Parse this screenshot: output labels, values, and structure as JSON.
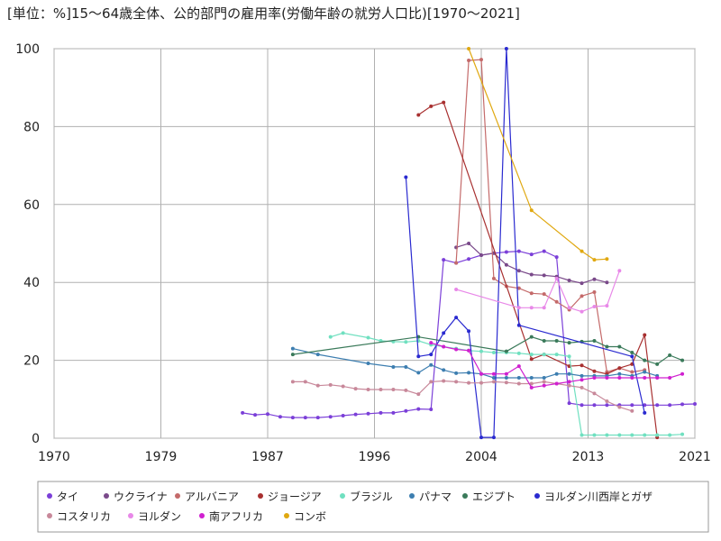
{
  "chart_data": {
    "type": "line",
    "title": "[単位：%]15～64歳全体、公的部門の雇用率(労働年齢の就労人口比)[1970～2021]",
    "xlabel": "",
    "ylabel": "",
    "xlim": [
      1970,
      2021
    ],
    "ylim": [
      0,
      100
    ],
    "x_ticks": [
      "1970",
      "1979",
      "1987",
      "1996",
      "2004",
      "2013",
      "2021"
    ],
    "x_tick_values": [
      1970,
      1978.5,
      1987,
      1995.5,
      2004,
      2012.5,
      2021
    ],
    "y_ticks": [
      "0",
      "20",
      "40",
      "60",
      "80",
      "100"
    ],
    "grid": true,
    "legend_position": "bottom",
    "series": [
      {
        "name": "タイ",
        "color": "#7b3fd8",
        "x": [
          1985,
          1986,
          1987,
          1988,
          1989,
          1990,
          1991,
          1992,
          1993,
          1994,
          1995,
          1996,
          1997,
          1998,
          1999,
          2000,
          2001,
          2002,
          2003,
          2004,
          2005,
          2006,
          2007,
          2008,
          2009,
          2010,
          2011,
          2012,
          2013,
          2014,
          2015,
          2016,
          2017,
          2018,
          2019,
          2020,
          2021
        ],
        "y": [
          6.5,
          6.0,
          6.2,
          5.5,
          5.3,
          5.3,
          5.3,
          5.5,
          5.8,
          6.1,
          6.3,
          6.5,
          6.5,
          7.0,
          7.5,
          7.4,
          45.8,
          45.0,
          46.0,
          47.0,
          47.5,
          47.8,
          48.0,
          47.2,
          48.0,
          46.5,
          9.0,
          8.5,
          8.5,
          8.5,
          8.5,
          8.5,
          8.5,
          8.5,
          8.5,
          8.7,
          8.8
        ]
      },
      {
        "name": "ウクライナ",
        "color": "#7a4a8a",
        "x": [
          2002,
          2003,
          2004,
          2005,
          2006,
          2007,
          2008,
          2009,
          2010,
          2011,
          2012,
          2013,
          2014
        ],
        "y": [
          49.0,
          50.0,
          47.0,
          47.5,
          44.5,
          43.0,
          42.0,
          41.8,
          41.5,
          40.5,
          39.8,
          40.8,
          40.0
        ]
      },
      {
        "name": "アルバニア",
        "color": "#c46a6a",
        "x": [
          2002,
          2003,
          2004,
          2005,
          2006,
          2007,
          2008,
          2009,
          2010,
          2011,
          2012,
          2013,
          2014,
          2015,
          2016,
          2017
        ],
        "y": [
          45.0,
          97.0,
          97.2,
          41.0,
          39.0,
          38.5,
          37.2,
          37.0,
          35.0,
          33.0,
          36.5,
          37.5,
          17.0,
          18.0,
          17.0,
          17.5
        ]
      },
      {
        "name": "ジョージア",
        "color": "#a83030",
        "x": [
          1999,
          2000,
          2001,
          2008,
          2009,
          2011,
          2012,
          2013,
          2014,
          2015,
          2016,
          2017,
          2018
        ],
        "y": [
          83.0,
          85.2,
          86.2,
          20.3,
          21.5,
          18.5,
          18.7,
          17.2,
          16.5,
          18.0,
          19.0,
          26.5,
          0.2
        ]
      },
      {
        "name": "ブラジル",
        "color": "#70e0c0",
        "x": [
          1992,
          1993,
          1995,
          1996,
          1997,
          1998,
          1999,
          2000,
          2001,
          2002,
          2003,
          2004,
          2005,
          2006,
          2007,
          2008,
          2009,
          2010,
          2011,
          2012,
          2013,
          2014,
          2015,
          2016,
          2017,
          2018,
          2019,
          2020
        ],
        "y": [
          26.0,
          27.0,
          25.8,
          25.0,
          24.8,
          24.7,
          25.0,
          24.0,
          23.5,
          23.0,
          22.5,
          22.3,
          22.0,
          22.0,
          21.8,
          21.5,
          21.5,
          21.5,
          21.0,
          0.8,
          0.8,
          0.8,
          0.8,
          0.8,
          0.8,
          0.8,
          0.8,
          1.0
        ]
      },
      {
        "name": "パナマ",
        "color": "#3d7eb0",
        "x": [
          1989,
          1991,
          1995,
          1997,
          1998,
          1999,
          2000,
          2001,
          2002,
          2003,
          2004,
          2005,
          2006,
          2007,
          2008,
          2009,
          2010,
          2011,
          2012,
          2013,
          2014,
          2015,
          2016,
          2017,
          2018
        ],
        "y": [
          23.0,
          21.5,
          19.2,
          18.3,
          18.3,
          16.8,
          18.8,
          17.5,
          16.7,
          16.8,
          16.5,
          15.5,
          15.5,
          15.5,
          15.5,
          15.5,
          16.5,
          16.5,
          16.0,
          16.0,
          16.0,
          16.5,
          16.0,
          17.0,
          16.0
        ]
      },
      {
        "name": "エジプト",
        "color": "#3a7a5a",
        "x": [
          1989,
          1999,
          2006,
          2008,
          2009,
          2010,
          2011,
          2012,
          2013,
          2014,
          2015,
          2016,
          2017,
          2018,
          2019,
          2020
        ],
        "y": [
          21.5,
          26.0,
          22.3,
          26.0,
          25.0,
          25.0,
          24.5,
          24.8,
          25.0,
          23.5,
          23.5,
          22.0,
          20.0,
          19.0,
          21.3,
          20.0
        ]
      },
      {
        "name": "ヨルダン川西岸とガザ",
        "color": "#2a2ad0",
        "x": [
          1998,
          1999,
          2000,
          2001,
          2002,
          2003,
          2004,
          2005,
          2006,
          2007,
          2016,
          2017
        ],
        "y": [
          67.0,
          21.0,
          21.5,
          27.0,
          31.0,
          27.5,
          0.2,
          0.2,
          100.0,
          29.0,
          21.0,
          6.5
        ]
      },
      {
        "name": "コスタリカ",
        "color": "#c8889a",
        "x": [
          1989,
          1990,
          1991,
          1992,
          1993,
          1994,
          1995,
          1996,
          1997,
          1998,
          1999,
          2000,
          2001,
          2002,
          2003,
          2004,
          2005,
          2006,
          2007,
          2008,
          2009,
          2010,
          2011,
          2012,
          2013,
          2014,
          2015,
          2016
        ],
        "y": [
          14.5,
          14.5,
          13.5,
          13.7,
          13.3,
          12.7,
          12.5,
          12.5,
          12.5,
          12.3,
          11.3,
          14.5,
          14.7,
          14.5,
          14.2,
          14.2,
          14.5,
          14.3,
          14.0,
          14.0,
          14.5,
          14.0,
          13.5,
          13.0,
          11.5,
          9.5,
          8.0,
          7.0
        ]
      },
      {
        "name": "ヨルダン",
        "color": "#e888e8",
        "x": [
          2002,
          2007,
          2008,
          2009,
          2010,
          2011,
          2012,
          2013,
          2014,
          2015
        ],
        "y": [
          38.2,
          33.5,
          33.5,
          33.5,
          41.0,
          33.5,
          32.5,
          33.8,
          34.0,
          43.0
        ]
      },
      {
        "name": "南アフリカ",
        "color": "#d020d0",
        "x": [
          2000,
          2001,
          2002,
          2003,
          2004,
          2005,
          2006,
          2007,
          2008,
          2009,
          2010,
          2011,
          2012,
          2013,
          2014,
          2015,
          2016,
          2017,
          2018,
          2019,
          2020
        ],
        "y": [
          24.5,
          23.5,
          22.8,
          22.5,
          16.5,
          16.5,
          16.5,
          18.5,
          13.0,
          13.5,
          14.0,
          14.5,
          15.0,
          15.5,
          15.5,
          15.5,
          15.5,
          15.5,
          15.5,
          15.5,
          16.5
        ]
      },
      {
        "name": "コンボ",
        "color": "#e0a810",
        "x": [
          2003,
          2008,
          2012,
          2013,
          2014
        ],
        "y": [
          100.0,
          58.5,
          48.0,
          45.8,
          46.0
        ]
      }
    ]
  }
}
